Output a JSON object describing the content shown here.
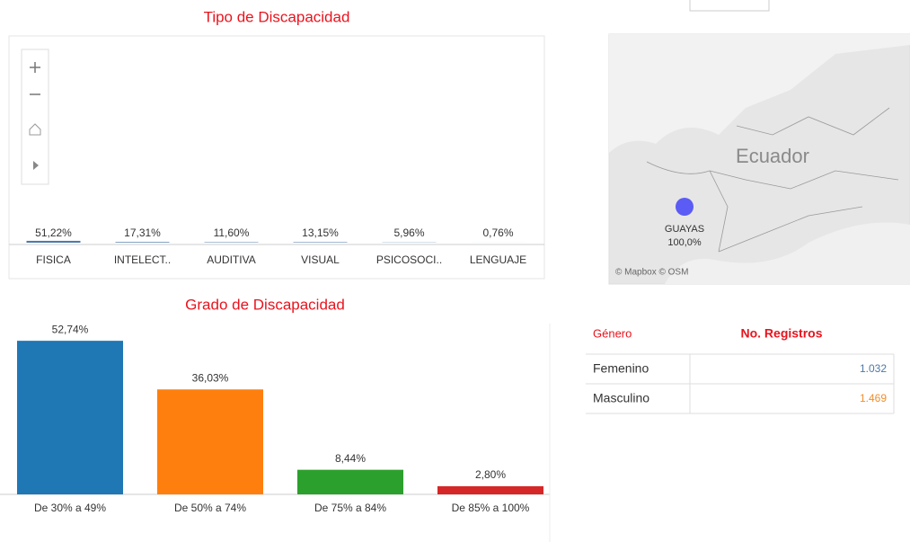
{
  "chart_data": [
    {
      "type": "bar",
      "title": "Tipo de Discapacidad",
      "categories": [
        "FISICA",
        "INTELECT..",
        "AUDITIVA",
        "VISUAL",
        "PSICOSOCI..",
        "LENGUAJE"
      ],
      "values": [
        51.22,
        17.31,
        11.6,
        13.15,
        5.96,
        0.76
      ],
      "value_labels": [
        "51,22%",
        "17,31%",
        "11,60%",
        "13,15%",
        "5,96%",
        "0,76%"
      ],
      "color": "#4e79a7"
    },
    {
      "type": "bar",
      "title": "Grado de Discapacidad",
      "categories": [
        "De 30% a 49%",
        "De 50% a 74%",
        "De 75% a 84%",
        "De 85% a 100%"
      ],
      "values": [
        52.74,
        36.03,
        8.44,
        2.8
      ],
      "value_labels": [
        "52,74%",
        "36,03%",
        "8,44%",
        "2,80%"
      ],
      "colors": [
        "#1f77b4",
        "#ff7f0e",
        "#2ca02c",
        "#d62728"
      ]
    }
  ],
  "map": {
    "country": "Ecuador",
    "region": "GUAYAS",
    "value": 100.0,
    "value_label": "100,0%",
    "attribution": "© Mapbox © OSM"
  },
  "table": {
    "headers": [
      "Género",
      "No. Registros"
    ],
    "rows": [
      [
        "Femenino",
        "1.032"
      ],
      [
        "Masculino",
        "1.469"
      ]
    ],
    "colors": [
      "#4e79a7",
      "#f28e2b"
    ]
  }
}
